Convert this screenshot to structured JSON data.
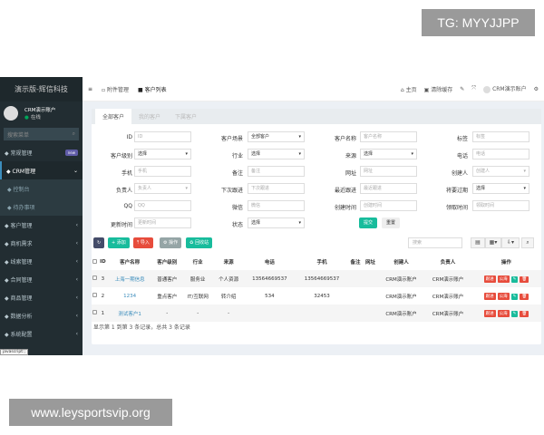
{
  "watermarks": {
    "top": "TG: MYYJJPP",
    "bottom": "www.leysportsvip.org"
  },
  "sidebar": {
    "logo": "演示版-辉信科技",
    "user": "CRM演示账户",
    "status": "在线",
    "search_placeholder": "搜索菜单",
    "items": [
      {
        "label": "常规管理",
        "badge": "new",
        "icon": "cogs-icon"
      },
      {
        "label": "CRM管理",
        "icon": "id-card-icon",
        "expanded": true
      },
      {
        "label": "控制台",
        "icon": "dashboard-icon",
        "sub": true
      },
      {
        "label": "待办事项",
        "icon": "calendar-icon",
        "sub": true
      },
      {
        "label": "客户管理",
        "icon": "users-icon"
      },
      {
        "label": "商机需求",
        "icon": "yen-icon"
      },
      {
        "label": "线索管理",
        "icon": "link-icon"
      },
      {
        "label": "合同管理",
        "icon": "file-icon"
      },
      {
        "label": "商品管理",
        "icon": "grid-icon"
      },
      {
        "label": "数据分析",
        "icon": "chart-icon"
      },
      {
        "label": "系统配置",
        "icon": "cogs-icon"
      }
    ],
    "status_tip": "javascript:;"
  },
  "topbar": {
    "tabs": [
      "附件管理",
      "客户列表"
    ],
    "home": "主页",
    "clear_cache": "清除缓存",
    "user": "CRM演示账户"
  },
  "panel": {
    "tabs": [
      "全部客户",
      "我的客户",
      "下属客户"
    ],
    "form": [
      [
        {
          "label": "ID",
          "ph": "ID"
        },
        {
          "label": "客户场景",
          "value": "全部客户",
          "select": true
        },
        {
          "label": "客户名称",
          "ph": "客户名称"
        },
        {
          "label": "标签",
          "ph": "标签"
        }
      ],
      [
        {
          "label": "客户级别",
          "value": "选择",
          "select": true
        },
        {
          "label": "行业",
          "value": "选择",
          "select": true
        },
        {
          "label": "来源",
          "value": "选择",
          "select": true
        },
        {
          "label": "电话",
          "ph": "电话"
        }
      ],
      [
        {
          "label": "手机",
          "ph": "手机"
        },
        {
          "label": "备注",
          "ph": "备注"
        },
        {
          "label": "网址",
          "ph": "网址"
        },
        {
          "label": "创建人",
          "ph": "创建人",
          "select": true
        }
      ],
      [
        {
          "label": "负责人",
          "ph": "负责人",
          "select": true
        },
        {
          "label": "下次跟进",
          "ph": "下次跟进"
        },
        {
          "label": "最近跟进",
          "ph": "最近跟进"
        },
        {
          "label": "将要过期",
          "value": "选择",
          "select": true
        }
      ],
      [
        {
          "label": "QQ",
          "ph": "QQ"
        },
        {
          "label": "微信",
          "ph": "微信"
        },
        {
          "label": "创建时间",
          "ph": "创建时间"
        },
        {
          "label": "领取时间",
          "ph": "领取时间"
        }
      ],
      [
        {
          "label": "更新时间",
          "ph": "更新时间"
        },
        {
          "label": "状态",
          "value": "选择",
          "select": true
        }
      ]
    ],
    "submit": "提交",
    "reset": "重置",
    "toolbar": {
      "add": "添加",
      "import": "导入",
      "operate": "操作",
      "recycle": "回收站",
      "search_placeholder": "搜索"
    },
    "columns": [
      "ID",
      "客户名称",
      "客户级别",
      "行业",
      "来源",
      "电话",
      "手机",
      "备注",
      "网址",
      "创建人",
      "负责人",
      "操作"
    ],
    "rows": [
      [
        "3",
        "上海一期信息",
        "普通客户",
        "服务业",
        "个人资源",
        "13564669537",
        "13564669537",
        "",
        "",
        "CRM演示账户",
        "CRM演示账户"
      ],
      [
        "2",
        "1234",
        "重点客户",
        "IT/互联网",
        "转介绍",
        "534",
        "32453",
        "",
        "",
        "CRM演示账户",
        "CRM演示账户"
      ],
      [
        "1",
        "测试客户1",
        "-",
        "-",
        "-",
        "",
        "",
        "",
        "",
        "CRM演示账户",
        "CRM演示账户"
      ]
    ],
    "row_actions": {
      "follow": "跟进",
      "sea": "公海"
    },
    "footer": "显示第 1 到第 3 条记录，总共 3 条记录"
  },
  "colors": {
    "sidebar": "#222d32",
    "primary": "#18bc9c",
    "danger": "#e74c3c",
    "dark": "#444c69",
    "info": "#95a5a6"
  }
}
